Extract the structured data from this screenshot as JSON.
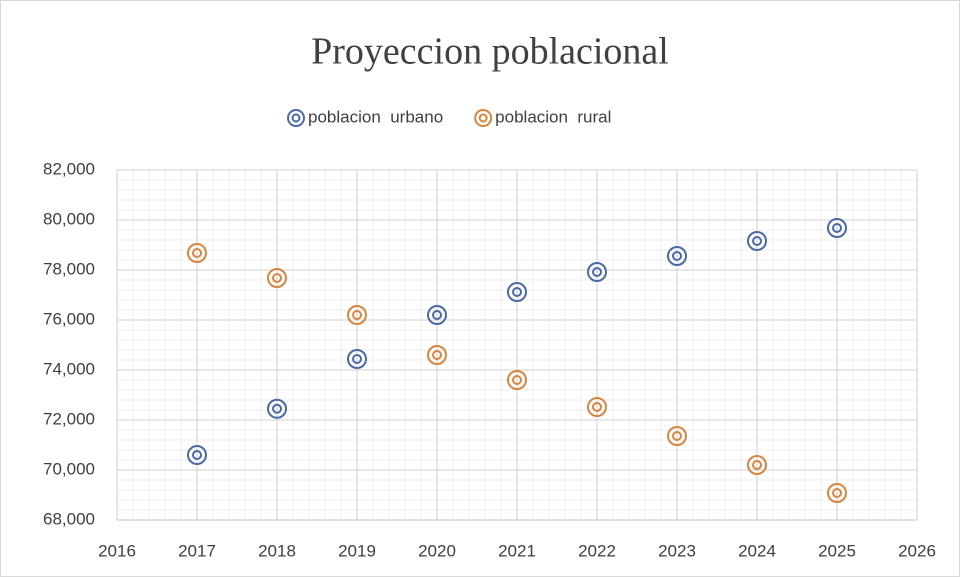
{
  "chart_data": {
    "type": "scatter",
    "title": "Proyeccion poblacional",
    "x": [
      2017,
      2018,
      2019,
      2020,
      2021,
      2022,
      2023,
      2024,
      2025
    ],
    "series": [
      {
        "name": "poblacion  urbano",
        "color": "#4a6aa5",
        "values": [
          70600,
          72450,
          74440,
          76200,
          77120,
          77920,
          78560,
          79160,
          79680
        ]
      },
      {
        "name": "poblacion  rural",
        "color": "#d9843f",
        "values": [
          78680,
          77680,
          76200,
          74600,
          73600,
          72520,
          71360,
          70200,
          69080
        ]
      }
    ],
    "xlim": [
      2016,
      2026
    ],
    "xticks": [
      2016,
      2017,
      2018,
      2019,
      2020,
      2021,
      2022,
      2023,
      2024,
      2025,
      2026
    ],
    "ylim": [
      68000,
      82000
    ],
    "yticks": [
      {
        "value": 68000,
        "label": "68,000"
      },
      {
        "value": 70000,
        "label": "70,000"
      },
      {
        "value": 72000,
        "label": "72,000"
      },
      {
        "value": 74000,
        "label": "74,000"
      },
      {
        "value": 76000,
        "label": "76,000"
      },
      {
        "value": 78000,
        "label": "78,000"
      },
      {
        "value": 80000,
        "label": "80,000"
      },
      {
        "value": 82000,
        "label": "82,000"
      }
    ],
    "grid": true,
    "legend": "top"
  }
}
